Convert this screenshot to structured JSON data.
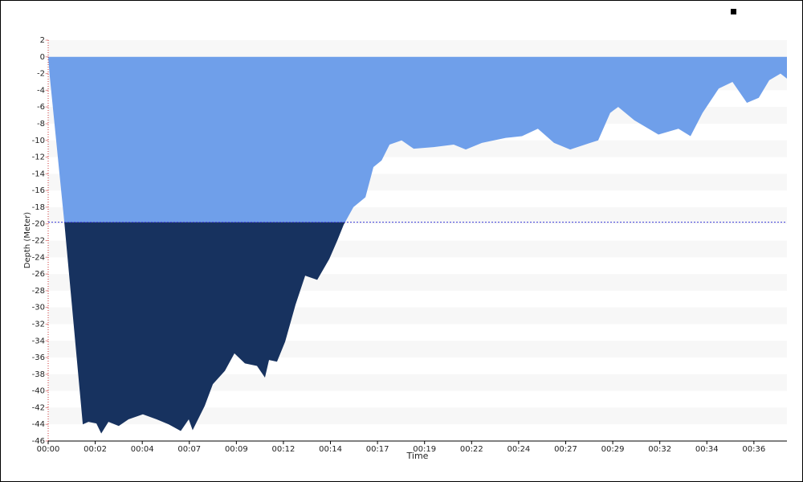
{
  "chart_data": {
    "type": "area",
    "x_label": "Time",
    "y_label": "Depth (Meter)",
    "x": [
      0,
      0.08,
      0.83,
      1.78,
      2.07,
      2.48,
      2.73,
      3.1,
      3.63,
      4.13,
      4.87,
      5.58,
      6.2,
      6.82,
      7.23,
      7.43,
      8.05,
      8.47,
      9.09,
      9.58,
      10.12,
      10.74,
      11.15,
      11.36,
      11.77,
      12.19,
      12.72,
      13.22,
      13.84,
      14.46,
      14.87,
      15.2,
      15.7,
      16.32,
      16.73,
      17.15,
      17.56,
      18.18,
      18.8,
      19.83,
      20.86,
      21.48,
      22.31,
      23.54,
      24.37,
      25.19,
      26.02,
      26.85,
      27.88,
      28.29,
      28.91,
      29.32,
      30.15,
      31.39,
      32.42,
      33.04,
      33.66,
      34.49,
      35.2,
      35.94,
      36.55,
      37.09,
      37.67,
      38
    ],
    "values": [
      0,
      -2.3,
      -19.8,
      -44,
      -43.7,
      -43.9,
      -45.1,
      -43.7,
      -44.2,
      -43.4,
      -42.8,
      -43.4,
      -44,
      -44.8,
      -43.4,
      -44.7,
      -41.8,
      -39.2,
      -37.6,
      -35.5,
      -36.7,
      -37,
      -38.4,
      -36.3,
      -36.5,
      -34.1,
      -29.7,
      -26.2,
      -26.7,
      -24.2,
      -22,
      -20.1,
      -18,
      -16.8,
      -13.2,
      -12.4,
      -10.5,
      -10,
      -11,
      -10.8,
      -10.5,
      -11.1,
      -10.3,
      -9.7,
      -9.5,
      -8.6,
      -10.3,
      -11.1,
      -10.3,
      -10,
      -6.7,
      -6,
      -7.6,
      -9.3,
      -8.6,
      -9.5,
      -6.7,
      -3.8,
      -3,
      -5.5,
      -4.9,
      -2.8,
      -2,
      -2.6
    ],
    "color": "#6f9fea",
    "deep_color": "#17325f",
    "reference_depth": -19.8,
    "reference_color": "#3a3ad8",
    "xlim": [
      0,
      38
    ],
    "ylim": [
      -46,
      2
    ],
    "xticks": [
      {
        "value": 0,
        "label": "00:00"
      },
      {
        "value": 2.42,
        "label": "00:02"
      },
      {
        "value": 4.84,
        "label": "00:04"
      },
      {
        "value": 7.26,
        "label": "00:07"
      },
      {
        "value": 9.68,
        "label": "00:09"
      },
      {
        "value": 12.1,
        "label": "00:12"
      },
      {
        "value": 14.52,
        "label": "00:14"
      },
      {
        "value": 16.94,
        "label": "00:17"
      },
      {
        "value": 19.36,
        "label": "00:19"
      },
      {
        "value": 21.78,
        "label": "00:22"
      },
      {
        "value": 24.2,
        "label": "00:24"
      },
      {
        "value": 26.62,
        "label": "00:27"
      },
      {
        "value": 29.04,
        "label": "00:29"
      },
      {
        "value": 31.46,
        "label": "00:32"
      },
      {
        "value": 33.88,
        "label": "00:34"
      },
      {
        "value": 36.3,
        "label": "00:36"
      }
    ],
    "yticks": [
      2,
      0,
      -2,
      -4,
      -6,
      -8,
      -10,
      -12,
      -14,
      -16,
      -18,
      -20,
      -22,
      -24,
      -26,
      -28,
      -30,
      -32,
      -34,
      -36,
      -38,
      -40,
      -42,
      -44,
      -46
    ],
    "grid": true
  }
}
